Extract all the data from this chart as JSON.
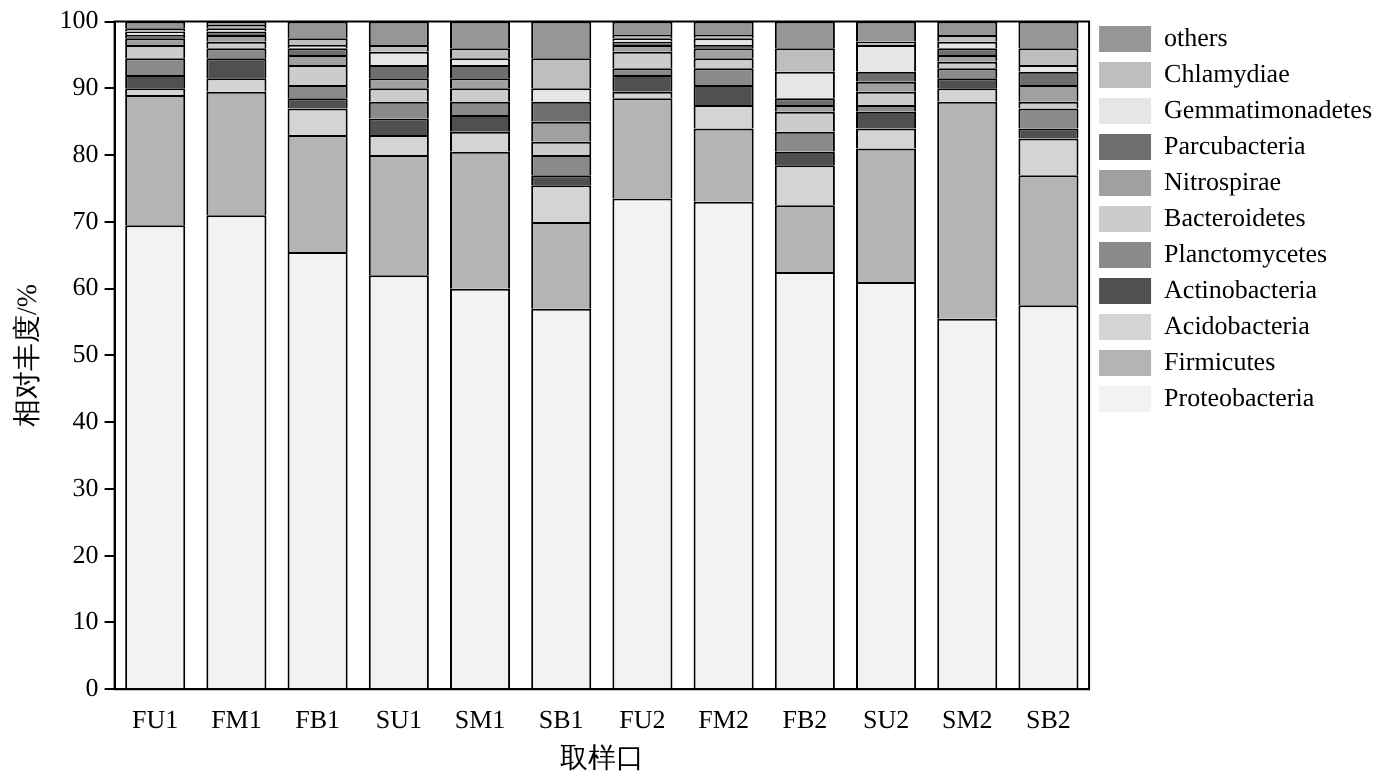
{
  "chart_data": {
    "type": "bar",
    "stacked": true,
    "xlabel": "取样口",
    "ylabel": "相对丰度/%",
    "categories": [
      "FU1",
      "FM1",
      "FB1",
      "SU1",
      "SM1",
      "SB1",
      "FU2",
      "FM2",
      "FB2",
      "SU2",
      "SM2",
      "SB2"
    ],
    "ylim": [
      0,
      100
    ],
    "yticks": [
      0,
      10,
      20,
      30,
      40,
      50,
      60,
      70,
      80,
      90,
      100
    ],
    "grid": false,
    "legend": "right",
    "series": [
      {
        "name": "Proteobacteria",
        "color": "#f2f2f2",
        "values": [
          69.5,
          71,
          65.5,
          62,
          60,
          57,
          73.5,
          73,
          62.5,
          61,
          55.5,
          57.5
        ]
      },
      {
        "name": "Firmicutes",
        "color": "#b4b4b4",
        "values": [
          19.5,
          18.5,
          17.5,
          18,
          20.5,
          13,
          15,
          11,
          10,
          20,
          32.5,
          19.5
        ]
      },
      {
        "name": "Acidobacteria",
        "color": "#d4d4d4",
        "values": [
          1,
          2,
          4,
          3,
          3,
          5.5,
          1,
          3.5,
          6,
          3,
          2,
          5.5
        ]
      },
      {
        "name": "Actinobacteria",
        "color": "#505050",
        "values": [
          2,
          3,
          1.5,
          2.5,
          2.5,
          1.5,
          2.5,
          3,
          2,
          2.5,
          1.5,
          1.5
        ]
      },
      {
        "name": "Planctomycetes",
        "color": "#8a8a8a",
        "values": [
          2.5,
          1.5,
          2,
          2.5,
          2,
          3,
          1,
          2.5,
          3,
          1,
          1.5,
          3
        ]
      },
      {
        "name": "Bacteroidetes",
        "color": "#cccccc",
        "values": [
          2,
          1,
          3,
          2,
          2,
          2,
          2.5,
          1.5,
          3,
          2,
          1,
          1
        ]
      },
      {
        "name": "Nitrospirae",
        "color": "#a0a0a0",
        "values": [
          1,
          1,
          1.5,
          1.5,
          1.5,
          3,
          1,
          1.5,
          1,
          1.5,
          1,
          2.5
        ]
      },
      {
        "name": "Parcubacteria",
        "color": "#6e6e6e",
        "values": [
          0.5,
          0.5,
          1,
          2,
          2,
          3,
          0.5,
          0.5,
          1,
          1.5,
          1,
          2
        ]
      },
      {
        "name": "Gemmatimonadetes",
        "color": "#e6e6e6",
        "values": [
          0.5,
          0.5,
          0.5,
          2,
          1,
          2,
          0.5,
          1,
          4,
          4,
          1,
          1
        ]
      },
      {
        "name": "Chlamydiae",
        "color": "#bebebe",
        "values": [
          0.5,
          0.5,
          1,
          1,
          1.5,
          4.5,
          0.5,
          0.5,
          3.5,
          0.5,
          1,
          2.5
        ]
      },
      {
        "name": "others",
        "color": "#969696",
        "values": [
          1,
          0.5,
          2.5,
          3.5,
          4,
          5.5,
          2,
          2,
          4,
          3,
          2,
          4
        ]
      }
    ]
  }
}
